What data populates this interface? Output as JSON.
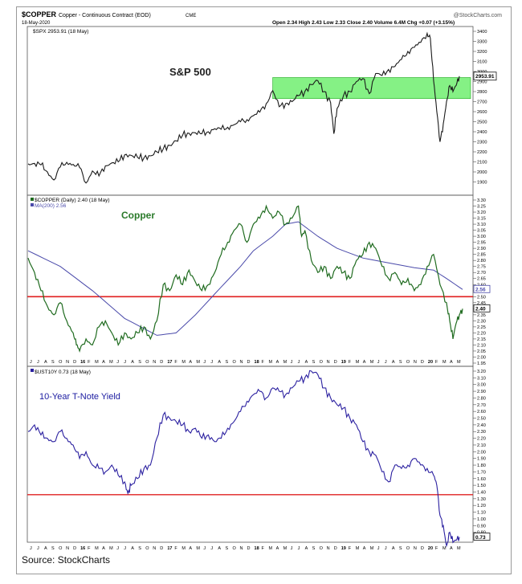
{
  "header": {
    "symbol": "$COPPER",
    "name": "Copper - Continuous Contract (EOD)",
    "exchange": "CME",
    "date": "18-May-2020",
    "quote": "Open 2.34  High 2.43  Low 2.33  Close 2.40  Volume 6.4M  Chg +0.07 (+3.15%)",
    "brand": "@StockCharts.com"
  },
  "source": "Source: StockCharts",
  "x_labels": [
    "J",
    "J",
    "A",
    "S",
    "O",
    "N",
    "D",
    "16",
    "F",
    "M",
    "A",
    "M",
    "J",
    "J",
    "A",
    "S",
    "O",
    "N",
    "D",
    "17",
    "F",
    "M",
    "A",
    "M",
    "J",
    "J",
    "A",
    "S",
    "O",
    "N",
    "D",
    "18",
    "F",
    "M",
    "A",
    "M",
    "J",
    "J",
    "A",
    "S",
    "O",
    "N",
    "D",
    "19",
    "F",
    "M",
    "A",
    "M",
    "J",
    "J",
    "A",
    "S",
    "O",
    "N",
    "D",
    "20",
    "F",
    "M",
    "A",
    "M"
  ],
  "colors": {
    "price": "#1a1a1a",
    "copper": "#1f6b1f",
    "ma": "#4a4aaa",
    "yield": "#2b20a0",
    "red_line": "#e02020",
    "band": "#66ee66"
  },
  "chart_data": [
    {
      "type": "line",
      "legend": "$SPX 2953.91 (18 May)",
      "title": "S&P 500",
      "last_value_label": "2953.91",
      "ylim": [
        1800,
        3400
      ],
      "yticks": [
        1900,
        2000,
        2100,
        2200,
        2300,
        2400,
        2500,
        2600,
        2700,
        2800,
        2900,
        3000,
        3100,
        3200,
        3300,
        3400
      ],
      "band": [
        2730,
        2940
      ],
      "series": [
        {
          "points": [
            [
              0,
              2080
            ],
            [
              2,
              2085
            ],
            [
              4,
              2070
            ],
            [
              6,
              2000
            ],
            [
              8,
              1920
            ],
            [
              10,
              2050
            ],
            [
              12,
              2095
            ],
            [
              14,
              2075
            ],
            [
              16,
              2045
            ],
            [
              18,
              1890
            ],
            [
              20,
              2010
            ],
            [
              22,
              1960
            ],
            [
              24,
              2060
            ],
            [
              26,
              2090
            ],
            [
              28,
              2100
            ],
            [
              30,
              2170
            ],
            [
              32,
              2165
            ],
            [
              34,
              2145
            ],
            [
              36,
              2140
            ],
            [
              38,
              2160
            ],
            [
              40,
              2200
            ],
            [
              42,
              2230
            ],
            [
              44,
              2265
            ],
            [
              46,
              2310
            ],
            [
              48,
              2365
            ],
            [
              50,
              2385
            ],
            [
              52,
              2390
            ],
            [
              54,
              2380
            ],
            [
              56,
              2400
            ],
            [
              58,
              2430
            ],
            [
              60,
              2425
            ],
            [
              62,
              2445
            ],
            [
              64,
              2470
            ],
            [
              66,
              2500
            ],
            [
              68,
              2520
            ],
            [
              70,
              2560
            ],
            [
              72,
              2595
            ],
            [
              74,
              2680
            ],
            [
              76,
              2810
            ],
            [
              78,
              2650
            ],
            [
              80,
              2680
            ],
            [
              82,
              2700
            ],
            [
              84,
              2760
            ],
            [
              86,
              2800
            ],
            [
              88,
              2870
            ],
            [
              90,
              2910
            ],
            [
              92,
              2800
            ],
            [
              94,
              2690
            ],
            [
              95,
              2380
            ],
            [
              96,
              2630
            ],
            [
              98,
              2760
            ],
            [
              100,
              2800
            ],
            [
              102,
              2900
            ],
            [
              104,
              2930
            ],
            [
              106,
              2780
            ],
            [
              108,
              2980
            ],
            [
              110,
              2960
            ],
            [
              112,
              3020
            ],
            [
              114,
              3050
            ],
            [
              116,
              3120
            ],
            [
              118,
              3200
            ],
            [
              120,
              3240
            ],
            [
              122,
              3290
            ],
            [
              124,
              3380
            ],
            [
              125,
              3330
            ],
            [
              126,
              2910
            ],
            [
              127,
              2600
            ],
            [
              128,
              2300
            ],
            [
              129,
              2480
            ],
            [
              130,
              2700
            ],
            [
              131,
              2860
            ],
            [
              132,
              2800
            ],
            [
              133,
              2860
            ],
            [
              134,
              2953.91
            ]
          ]
        }
      ]
    },
    {
      "type": "line",
      "legend": "$COPPER (Daily) 2.40 (18 May)",
      "ma_legend": "MA(200) 2.56",
      "title": "Copper",
      "last_value_label": "2.40",
      "ma_value_label": "2.56",
      "ylim": [
        1.95,
        3.3
      ],
      "yticks": [
        1.95,
        2.0,
        2.05,
        2.1,
        2.15,
        2.2,
        2.25,
        2.3,
        2.35,
        2.4,
        2.45,
        2.5,
        2.55,
        2.6,
        2.65,
        2.7,
        2.75,
        2.8,
        2.85,
        2.9,
        2.95,
        3.0,
        3.05,
        3.1,
        3.15,
        3.2,
        3.25,
        3.3
      ],
      "hline": 2.5,
      "series": [
        {
          "name": "$COPPER",
          "points": [
            [
              0,
              2.82
            ],
            [
              2,
              2.7
            ],
            [
              4,
              2.55
            ],
            [
              6,
              2.42
            ],
            [
              8,
              2.35
            ],
            [
              10,
              2.45
            ],
            [
              12,
              2.3
            ],
            [
              14,
              2.2
            ],
            [
              15,
              2.1
            ],
            [
              16,
              2.05
            ],
            [
              18,
              2.15
            ],
            [
              20,
              2.1
            ],
            [
              22,
              2.25
            ],
            [
              24,
              2.3
            ],
            [
              26,
              2.2
            ],
            [
              28,
              2.1
            ],
            [
              30,
              2.2
            ],
            [
              32,
              2.15
            ],
            [
              34,
              2.2
            ],
            [
              36,
              2.25
            ],
            [
              38,
              2.15
            ],
            [
              40,
              2.3
            ],
            [
              42,
              2.6
            ],
            [
              44,
              2.55
            ],
            [
              46,
              2.68
            ],
            [
              48,
              2.6
            ],
            [
              50,
              2.72
            ],
            [
              52,
              2.62
            ],
            [
              54,
              2.55
            ],
            [
              56,
              2.6
            ],
            [
              58,
              2.7
            ],
            [
              60,
              2.85
            ],
            [
              62,
              2.95
            ],
            [
              64,
              3.05
            ],
            [
              66,
              3.1
            ],
            [
              68,
              2.95
            ],
            [
              70,
              3.1
            ],
            [
              72,
              3.15
            ],
            [
              74,
              3.25
            ],
            [
              76,
              3.15
            ],
            [
              78,
              3.2
            ],
            [
              80,
              3.1
            ],
            [
              82,
              3.15
            ],
            [
              84,
              3.25
            ],
            [
              85,
              3.0
            ],
            [
              86,
              3.05
            ],
            [
              88,
              2.8
            ],
            [
              90,
              2.7
            ],
            [
              92,
              2.75
            ],
            [
              94,
              2.65
            ],
            [
              96,
              2.75
            ],
            [
              98,
              2.7
            ],
            [
              100,
              2.65
            ],
            [
              102,
              2.8
            ],
            [
              104,
              2.85
            ],
            [
              106,
              2.95
            ],
            [
              108,
              2.9
            ],
            [
              110,
              2.75
            ],
            [
              112,
              2.65
            ],
            [
              114,
              2.7
            ],
            [
              116,
              2.6
            ],
            [
              118,
              2.65
            ],
            [
              120,
              2.55
            ],
            [
              122,
              2.6
            ],
            [
              124,
              2.75
            ],
            [
              126,
              2.85
            ],
            [
              128,
              2.6
            ],
            [
              130,
              2.45
            ],
            [
              131,
              2.3
            ],
            [
              132,
              2.15
            ],
            [
              133,
              2.28
            ],
            [
              134,
              2.35
            ],
            [
              135,
              2.4
            ]
          ]
        },
        {
          "name": "MA(200)",
          "points": [
            [
              0,
              2.88
            ],
            [
              10,
              2.75
            ],
            [
              20,
              2.55
            ],
            [
              30,
              2.32
            ],
            [
              40,
              2.18
            ],
            [
              46,
              2.2
            ],
            [
              52,
              2.35
            ],
            [
              60,
              2.58
            ],
            [
              66,
              2.75
            ],
            [
              70,
              2.88
            ],
            [
              76,
              3.0
            ],
            [
              80,
              3.1
            ],
            [
              84,
              3.12
            ],
            [
              90,
              3.0
            ],
            [
              96,
              2.9
            ],
            [
              104,
              2.82
            ],
            [
              112,
              2.78
            ],
            [
              120,
              2.74
            ],
            [
              126,
              2.72
            ],
            [
              130,
              2.65
            ],
            [
              135,
              2.56
            ]
          ]
        }
      ]
    },
    {
      "type": "line",
      "legend": "$UST10Y 0.73 (18 May)",
      "title": "10-Year T-Note Yield",
      "last_value_label": "0.73",
      "ylim": [
        0.7,
        3.2
      ],
      "yticks": [
        0.8,
        0.9,
        1.0,
        1.1,
        1.2,
        1.3,
        1.4,
        1.5,
        1.6,
        1.7,
        1.8,
        1.9,
        2.0,
        2.1,
        2.2,
        2.3,
        2.4,
        2.5,
        2.6,
        2.7,
        2.8,
        2.9,
        3.0,
        3.1,
        3.2
      ],
      "hline": 1.36,
      "series": [
        {
          "points": [
            [
              0,
              2.3
            ],
            [
              2,
              2.4
            ],
            [
              4,
              2.25
            ],
            [
              6,
              2.2
            ],
            [
              8,
              2.15
            ],
            [
              10,
              2.3
            ],
            [
              12,
              2.2
            ],
            [
              14,
              2.1
            ],
            [
              16,
              1.9
            ],
            [
              18,
              2.0
            ],
            [
              20,
              1.8
            ],
            [
              22,
              1.75
            ],
            [
              24,
              1.7
            ],
            [
              26,
              1.8
            ],
            [
              28,
              1.65
            ],
            [
              30,
              1.55
            ],
            [
              31,
              1.38
            ],
            [
              32,
              1.5
            ],
            [
              34,
              1.6
            ],
            [
              36,
              1.75
            ],
            [
              38,
              1.8
            ],
            [
              40,
              2.2
            ],
            [
              42,
              2.55
            ],
            [
              44,
              2.5
            ],
            [
              46,
              2.45
            ],
            [
              48,
              2.4
            ],
            [
              50,
              2.3
            ],
            [
              52,
              2.35
            ],
            [
              54,
              2.2
            ],
            [
              56,
              2.25
            ],
            [
              58,
              2.15
            ],
            [
              60,
              2.2
            ],
            [
              62,
              2.35
            ],
            [
              64,
              2.45
            ],
            [
              66,
              2.6
            ],
            [
              68,
              2.75
            ],
            [
              70,
              2.85
            ],
            [
              72,
              2.9
            ],
            [
              74,
              2.8
            ],
            [
              76,
              2.95
            ],
            [
              78,
              2.9
            ],
            [
              80,
              2.85
            ],
            [
              82,
              2.95
            ],
            [
              84,
              3.05
            ],
            [
              86,
              3.1
            ],
            [
              88,
              3.2
            ],
            [
              90,
              3.15
            ],
            [
              92,
              2.95
            ],
            [
              94,
              2.8
            ],
            [
              96,
              2.7
            ],
            [
              98,
              2.65
            ],
            [
              100,
              2.5
            ],
            [
              102,
              2.4
            ],
            [
              104,
              2.15
            ],
            [
              106,
              2.0
            ],
            [
              108,
              1.95
            ],
            [
              110,
              1.7
            ],
            [
              112,
              1.55
            ],
            [
              114,
              1.8
            ],
            [
              116,
              1.75
            ],
            [
              118,
              1.8
            ],
            [
              120,
              1.9
            ],
            [
              122,
              1.8
            ],
            [
              124,
              1.75
            ],
            [
              126,
              1.65
            ],
            [
              127,
              1.5
            ],
            [
              128,
              1.05
            ],
            [
              129,
              0.9
            ],
            [
              130,
              0.6
            ],
            [
              131,
              0.8
            ],
            [
              132,
              0.65
            ],
            [
              133,
              0.68
            ],
            [
              134,
              0.73
            ]
          ]
        }
      ]
    }
  ]
}
